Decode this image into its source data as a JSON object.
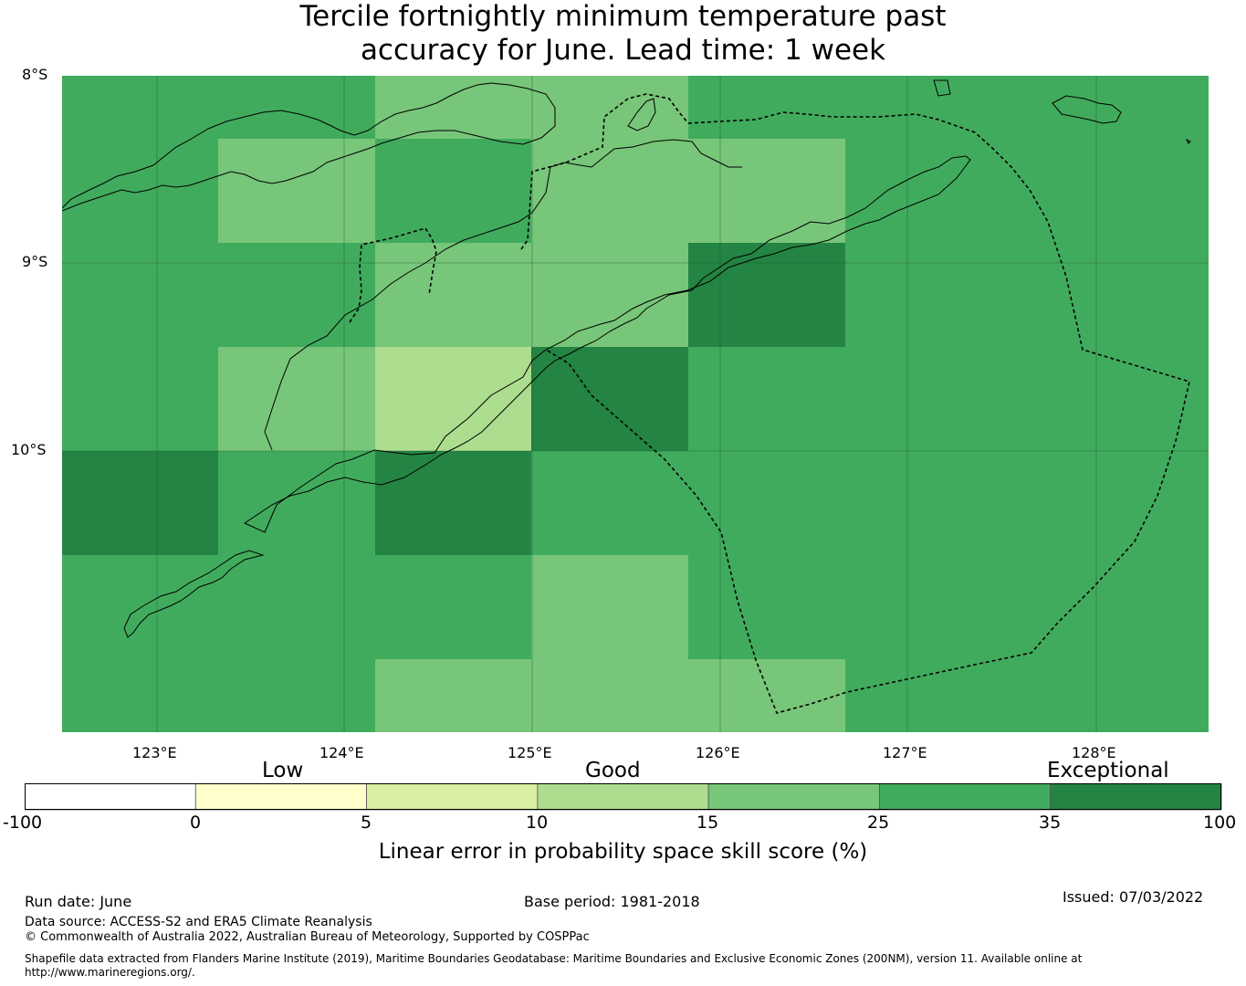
{
  "title": {
    "line1": "Tercile fortnightly minimum temperature past",
    "line2": "accuracy for June. Lead time: 1 week"
  },
  "map": {
    "lat_labels": [
      "8°S",
      "9°S",
      "10°S"
    ],
    "lon_labels": [
      "123°E",
      "124°E",
      "125°E",
      "126°E",
      "127°E",
      "128°E"
    ],
    "lat_range": [
      -11.5,
      -8.0
    ],
    "lon_range": [
      122.5,
      128.6
    ],
    "grid_on": true,
    "cell_colors": {
      "medium": "#41ab5d",
      "light": "#78c679",
      "pale": "#addd8e",
      "dark": "#238443"
    },
    "grid_rows": [
      [
        "medium",
        "medium",
        "light",
        "light",
        "medium",
        "medium",
        "medium"
      ],
      [
        "medium",
        "light",
        "medium",
        "light",
        "light",
        "medium",
        "medium"
      ],
      [
        "medium",
        "medium",
        "light",
        "light",
        "dark",
        "medium",
        "medium"
      ],
      [
        "medium",
        "light",
        "pale",
        "dark",
        "medium",
        "medium",
        "medium"
      ],
      [
        "dark",
        "medium",
        "dark",
        "medium",
        "medium",
        "medium",
        "medium"
      ],
      [
        "medium",
        "medium",
        "medium",
        "light",
        "medium",
        "medium",
        "medium"
      ],
      [
        "medium",
        "medium",
        "light",
        "light",
        "light",
        "medium",
        "medium"
      ]
    ]
  },
  "colorbar": {
    "categories": [
      "Low",
      "Good",
      "Exceptional"
    ],
    "ticks": [
      "-100",
      "0",
      "5",
      "10",
      "15",
      "25",
      "35",
      "100"
    ],
    "colors": [
      "#ffffff",
      "#ffffcc",
      "#d9f0a3",
      "#addd8e",
      "#78c679",
      "#41ab5d",
      "#238443"
    ],
    "label": "Linear error in probability space skill score (%)"
  },
  "footer": {
    "run_date": "Run date: June",
    "base_period": "Base period: 1981-2018",
    "issued": "Issued: 07/03/2022",
    "data_source": "Data source: ACCESS-S2 and ERA5 Climate Reanalysis",
    "copyright": "© Commonwealth of Australia 2022, Australian Bureau of Meteorology, Supported by COSPPac",
    "shapefile_line1": "Shapefile data extracted from Flanders Marine Institute (2019), Maritime Boundaries Geodatabase: Maritime Boundaries and Exclusive Economic Zones (200NM), version 11. Available online at",
    "shapefile_line2": "http://www.marineregions.org/."
  }
}
